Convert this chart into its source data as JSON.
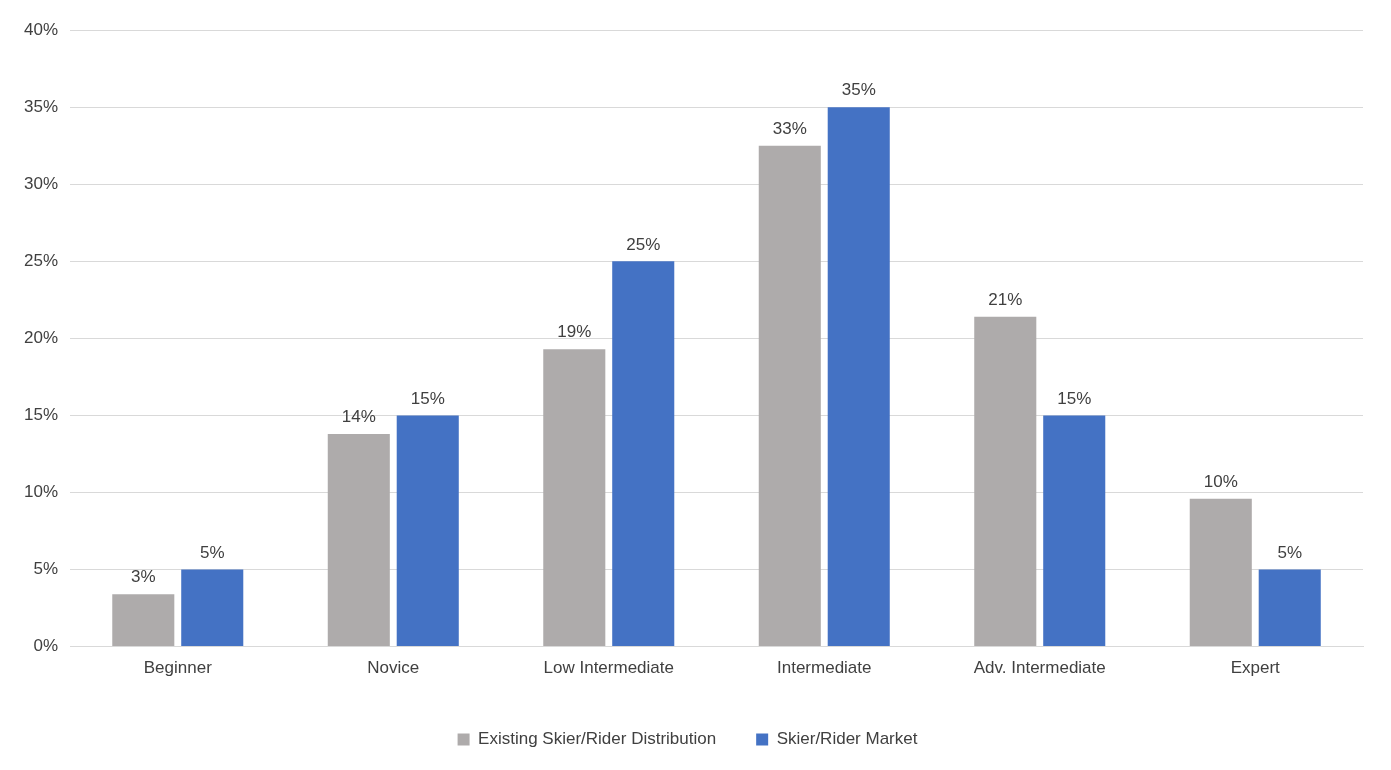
{
  "chart_data": {
    "type": "bar",
    "categories": [
      "Beginner",
      "Novice",
      "Low Intermediate",
      "Intermediate",
      "Adv. Intermediate",
      "Expert"
    ],
    "series": [
      {
        "name": "Existing Skier/Rider Distribution",
        "color": "#aeabab",
        "values": [
          3.4,
          13.8,
          19.3,
          32.5,
          21.4,
          9.6
        ],
        "value_labels": [
          "3%",
          "14%",
          "19%",
          "33%",
          "21%",
          "10%"
        ]
      },
      {
        "name": "Skier/Rider Market",
        "color": "#4472c4",
        "values": [
          5,
          15,
          25,
          35,
          15,
          5
        ],
        "value_labels": [
          "5%",
          "15%",
          "25%",
          "35%",
          "15%",
          "5%"
        ]
      }
    ],
    "ylim": [
      0,
      40
    ],
    "yticks": [
      {
        "value": 0,
        "label": "0%"
      },
      {
        "value": 5,
        "label": "5%"
      },
      {
        "value": 10,
        "label": "10%"
      },
      {
        "value": 15,
        "label": "15%"
      },
      {
        "value": 20,
        "label": "20%"
      },
      {
        "value": 25,
        "label": "25%"
      },
      {
        "value": 30,
        "label": "30%"
      },
      {
        "value": 35,
        "label": "35%"
      },
      {
        "value": 40,
        "label": "40%"
      }
    ],
    "grid": "y",
    "legend": "bottom"
  }
}
